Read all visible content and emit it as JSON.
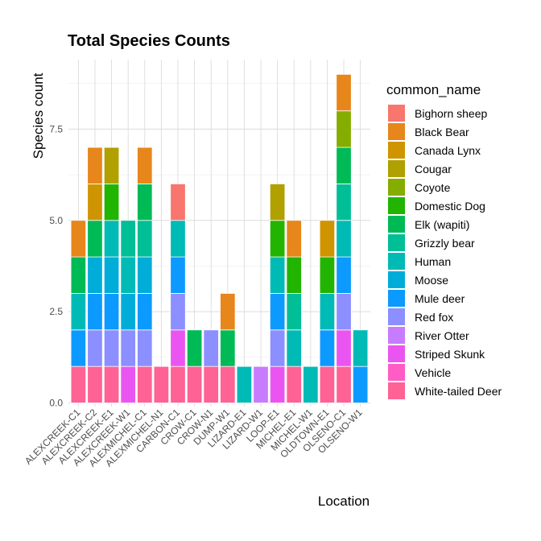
{
  "chart_data": {
    "type": "bar",
    "stacked": true,
    "title": "Total Species Counts",
    "xlabel": "Location",
    "ylabel": "Species count",
    "ylim": [
      0,
      9.3
    ],
    "yticks": [
      "0.0",
      "2.5",
      "5.0",
      "7.5"
    ],
    "ytick_values": [
      0,
      2.5,
      5,
      7.5
    ],
    "grid": true,
    "legend_title": "common_name",
    "legend_position": "right",
    "categories": [
      "ALEXCREEK-C1",
      "ALEXCREEK-C2",
      "ALEXCREEK-E1",
      "ALEXCREEK-W1",
      "ALEXMICHEL-C1",
      "ALEXMICHEL-N1",
      "CARBON-C1",
      "CROW-C1",
      "CROW-N1",
      "DUMP-W1",
      "LIZARD-E1",
      "LIZARD-W1",
      "LOOP-E1",
      "MICHEL-E1",
      "MICHEL-W1",
      "OLDTOWN-E1",
      "OLSENO-C1",
      "OLSENO-W1"
    ],
    "series": [
      {
        "name": "Bighorn sheep",
        "color": "#F8766D",
        "values": [
          0,
          0,
          0,
          0,
          0,
          0,
          1,
          0,
          0,
          0,
          0,
          0,
          0,
          0,
          0,
          0,
          0,
          0
        ]
      },
      {
        "name": "Black Bear",
        "color": "#E7861B",
        "values": [
          1,
          1,
          0,
          0,
          1,
          0,
          0,
          0,
          0,
          1,
          0,
          0,
          0,
          1,
          0,
          0,
          1,
          0
        ]
      },
      {
        "name": "Canada Lynx",
        "color": "#CF9500",
        "values": [
          0,
          1,
          0,
          0,
          0,
          0,
          0,
          0,
          0,
          0,
          0,
          0,
          0,
          0,
          0,
          1,
          0,
          0
        ]
      },
      {
        "name": "Cougar",
        "color": "#B0A000",
        "values": [
          0,
          0,
          1,
          0,
          0,
          0,
          0,
          0,
          0,
          0,
          0,
          0,
          1,
          0,
          0,
          0,
          0,
          0
        ]
      },
      {
        "name": "Coyote",
        "color": "#85AD00",
        "values": [
          0,
          0,
          0,
          0,
          0,
          0,
          0,
          0,
          0,
          0,
          0,
          0,
          0,
          0,
          0,
          0,
          1,
          0
        ]
      },
      {
        "name": "Domestic Dog",
        "color": "#21B400",
        "values": [
          0,
          0,
          1,
          0,
          0,
          0,
          0,
          0,
          0,
          0,
          0,
          0,
          1,
          1,
          0,
          1,
          0,
          0
        ]
      },
      {
        "name": "Elk (wapiti)",
        "color": "#00BA56",
        "values": [
          1,
          1,
          0,
          0,
          1,
          0,
          0,
          1,
          0,
          1,
          0,
          0,
          0,
          0,
          0,
          0,
          1,
          0
        ]
      },
      {
        "name": "Grizzly bear",
        "color": "#00BE96",
        "values": [
          0,
          0,
          0,
          1,
          1,
          0,
          0,
          0,
          0,
          0,
          0,
          0,
          0,
          1,
          0,
          0,
          1,
          0
        ]
      },
      {
        "name": "Human",
        "color": "#00BAB6",
        "values": [
          1,
          0,
          1,
          1,
          0,
          0,
          1,
          0,
          0,
          0,
          1,
          0,
          1,
          1,
          1,
          1,
          1,
          1
        ]
      },
      {
        "name": "Moose",
        "color": "#00ADD8",
        "values": [
          0,
          1,
          1,
          1,
          1,
          0,
          0,
          0,
          0,
          0,
          0,
          0,
          0,
          0,
          0,
          0,
          0,
          0
        ]
      },
      {
        "name": "Mule deer",
        "color": "#0C9AFF",
        "values": [
          1,
          1,
          1,
          0,
          1,
          0,
          1,
          0,
          0,
          0,
          0,
          0,
          1,
          0,
          0,
          1,
          1,
          1
        ]
      },
      {
        "name": "Red fox",
        "color": "#8B8FFF",
        "values": [
          0,
          1,
          1,
          1,
          1,
          0,
          1,
          0,
          1,
          0,
          0,
          0,
          1,
          0,
          0,
          0,
          1,
          0
        ]
      },
      {
        "name": "River Otter",
        "color": "#C77CFF",
        "values": [
          0,
          0,
          0,
          0,
          0,
          0,
          0,
          0,
          0,
          0,
          0,
          1,
          0,
          0,
          0,
          0,
          0,
          0
        ]
      },
      {
        "name": "Striped Skunk",
        "color": "#EA55F1",
        "values": [
          0,
          0,
          0,
          1,
          0,
          0,
          1,
          0,
          0,
          0,
          0,
          0,
          1,
          0,
          0,
          0,
          1,
          0
        ]
      },
      {
        "name": "Vehicle",
        "color": "#FF5CC5",
        "values": [
          0,
          0,
          0,
          0,
          0,
          0,
          0,
          0,
          0,
          0,
          0,
          0,
          0,
          0,
          0,
          0,
          0,
          0
        ]
      },
      {
        "name": "White-tailed Deer",
        "color": "#FF6294",
        "values": [
          1,
          1,
          1,
          0,
          1,
          1,
          1,
          1,
          1,
          1,
          0,
          0,
          0,
          1,
          0,
          1,
          1,
          0
        ]
      }
    ]
  }
}
